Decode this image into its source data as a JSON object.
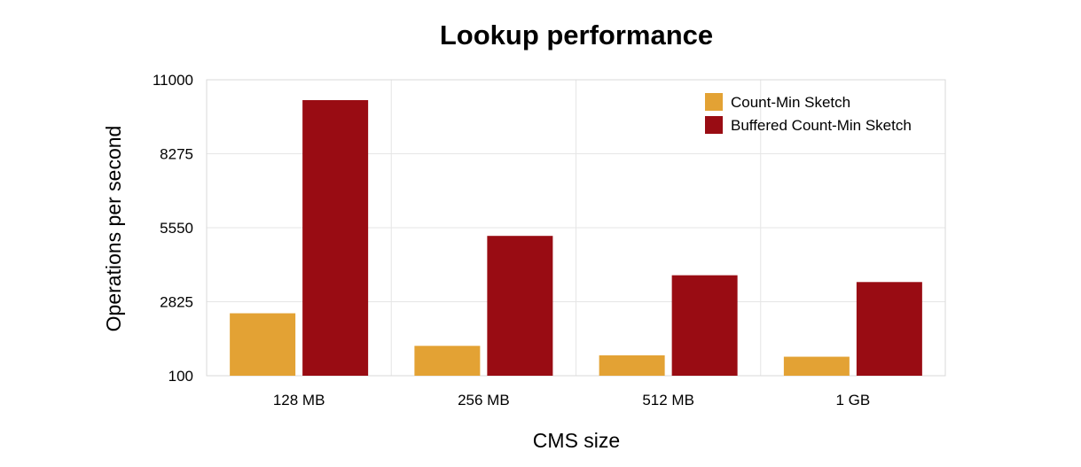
{
  "chart_data": {
    "type": "bar",
    "title": "Lookup performance",
    "xlabel": "CMS size",
    "ylabel": "Operations per second",
    "categories": [
      "128 MB",
      "256 MB",
      "512 MB",
      "1 GB"
    ],
    "series": [
      {
        "name": "Count-Min Sketch",
        "color": "#E3A234",
        "values": [
          2400,
          1200,
          850,
          800
        ]
      },
      {
        "name": "Buffered Count-Min Sketch",
        "color": "#990C13",
        "values": [
          10250,
          5250,
          3800,
          3550
        ]
      }
    ],
    "yticks": [
      100,
      2825,
      5550,
      8275,
      11000
    ],
    "ylim": [
      100,
      11000
    ],
    "grid": true,
    "legend_position": "top-right"
  }
}
